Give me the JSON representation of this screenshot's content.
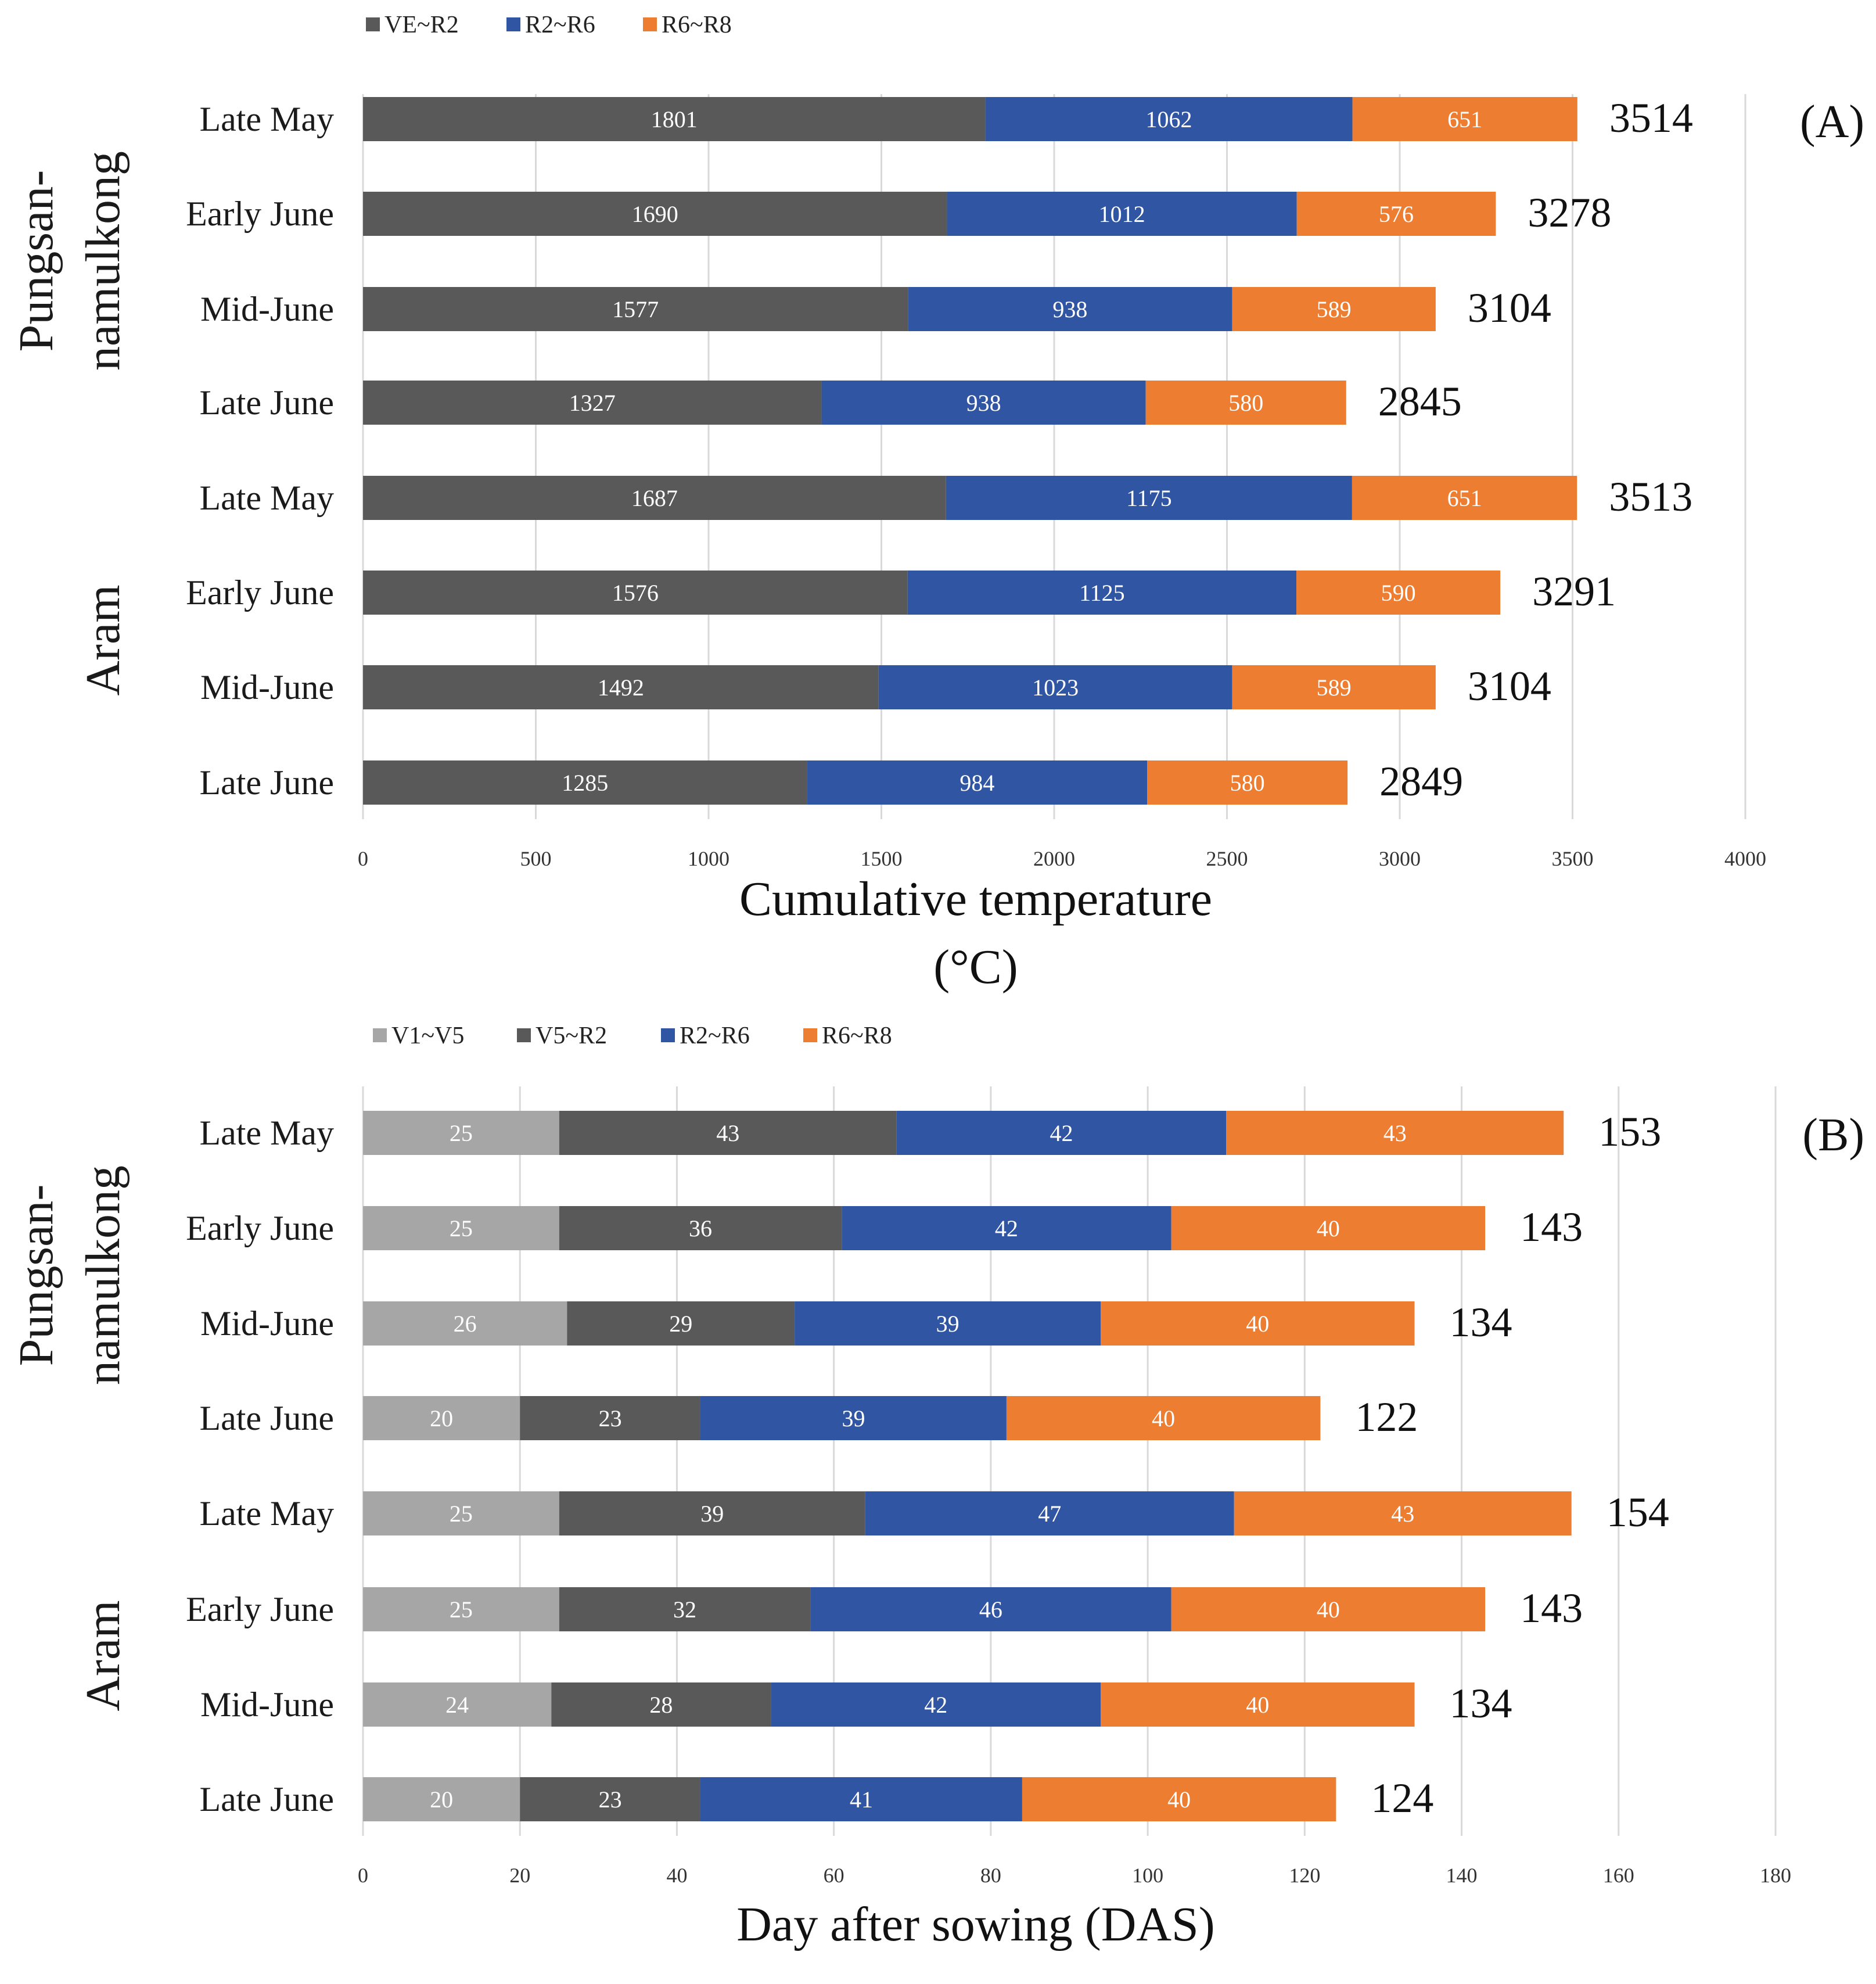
{
  "colors": {
    "V1~V5": "#a6a6a6",
    "VE~R2": "#595959",
    "V5~R2": "#595959",
    "R2~R6": "#2f55a3",
    "R6~R8": "#ed7d31"
  },
  "chart_data": [
    {
      "type": "bar",
      "orientation": "horizontal",
      "stacked": true,
      "panel": "(A)",
      "legend": [
        "VE~R2",
        "R2~R6",
        "R6~R8"
      ],
      "groups": [
        "Pungsan-\nnamulkong",
        "Aram"
      ],
      "categories": [
        "Late May",
        "Early June",
        "Mid-June",
        "Late June",
        "Late May",
        "Early June",
        "Mid-June",
        "Late June"
      ],
      "series": [
        {
          "name": "VE~R2",
          "values": [
            1801,
            1690,
            1577,
            1327,
            1687,
            1576,
            1492,
            1285
          ]
        },
        {
          "name": "R2~R6",
          "values": [
            1062,
            1012,
            938,
            938,
            1175,
            1125,
            1023,
            984
          ]
        },
        {
          "name": "R6~R8",
          "values": [
            651,
            576,
            589,
            580,
            651,
            590,
            589,
            580
          ]
        }
      ],
      "totals": [
        3514,
        3278,
        3104,
        2845,
        3513,
        3291,
        3104,
        2849
      ],
      "xticks": [
        "0",
        "500",
        "1000",
        "1500",
        "2000",
        "2500",
        "3000",
        "3500",
        "4000"
      ],
      "xlim": [
        0,
        4000
      ],
      "xlabel": "Cumulative temperature\n(°C)",
      "grid": true,
      "legend_position": "top-left"
    },
    {
      "type": "bar",
      "orientation": "horizontal",
      "stacked": true,
      "panel": "(B)",
      "legend": [
        "V1~V5",
        "V5~R2",
        "R2~R6",
        "R6~R8"
      ],
      "groups": [
        "Pungsan-\nnamulkong",
        "Aram"
      ],
      "categories": [
        "Late May",
        "Early June",
        "Mid-June",
        "Late June",
        "Late May",
        "Early June",
        "Mid-June",
        "Late June"
      ],
      "series": [
        {
          "name": "V1~V5",
          "values": [
            25,
            25,
            26,
            20,
            25,
            25,
            24,
            20
          ]
        },
        {
          "name": "V5~R2",
          "values": [
            43,
            36,
            29,
            23,
            39,
            32,
            28,
            23
          ]
        },
        {
          "name": "R2~R6",
          "values": [
            42,
            42,
            39,
            39,
            47,
            46,
            42,
            41
          ]
        },
        {
          "name": "R6~R8",
          "values": [
            43,
            40,
            40,
            40,
            43,
            40,
            40,
            40
          ]
        }
      ],
      "totals": [
        153,
        143,
        134,
        122,
        154,
        143,
        134,
        124
      ],
      "xticks": [
        "0",
        "20",
        "40",
        "60",
        "80",
        "100",
        "120",
        "140",
        "160",
        "180"
      ],
      "xlim": [
        0,
        180
      ],
      "xlabel": "Day after sowing (DAS)",
      "grid": true,
      "legend_position": "top-left"
    }
  ]
}
